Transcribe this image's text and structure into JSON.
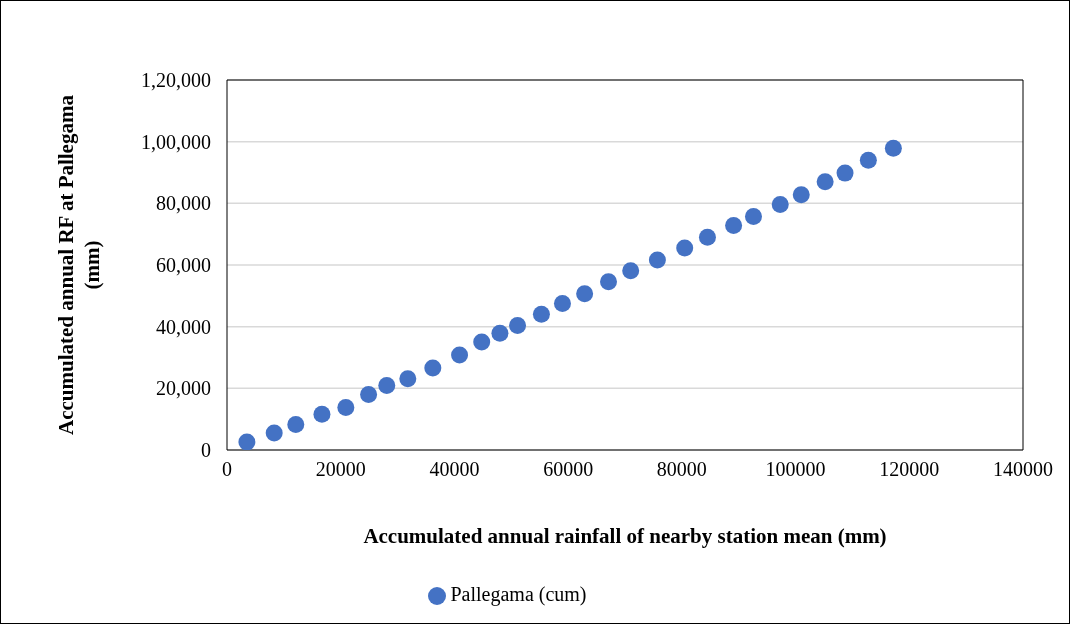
{
  "chart_data": {
    "type": "scatter",
    "xlabel": "Accumulated annual rainfall of nearby station mean (mm)",
    "ylabel": "Accumulated annual RF at Pallegama (mm)",
    "x": [
      3500,
      8300,
      12100,
      16700,
      20900,
      24900,
      28100,
      31800,
      36200,
      40900,
      44800,
      48000,
      51100,
      55300,
      59000,
      62900,
      67100,
      71000,
      75700,
      80500,
      84500,
      89100,
      92600,
      97300,
      101000,
      105200,
      108700,
      112800,
      117200
    ],
    "series": [
      {
        "name": "Pallegama (cum)",
        "color": "#4472c4",
        "values": [
          2600,
          5500,
          8300,
          11600,
          13800,
          18000,
          20900,
          23100,
          26600,
          30800,
          35000,
          37900,
          40400,
          44000,
          47500,
          50700,
          54600,
          58100,
          61600,
          65500,
          69000,
          72800,
          75700,
          79600,
          82800,
          87000,
          89800,
          94000,
          97900
        ]
      }
    ],
    "xlim": [
      0,
      140000
    ],
    "xticks": [
      0,
      20000,
      40000,
      60000,
      80000,
      100000,
      120000,
      140000
    ],
    "ylim": [
      0,
      120000
    ],
    "yticks": [
      0,
      {
        "value": 20000,
        "label": "20,000"
      },
      {
        "value": 40000,
        "label": "40,000"
      },
      {
        "value": 60000,
        "label": "60,000"
      },
      {
        "value": 80000,
        "label": "80,000"
      },
      {
        "value": 100000,
        "label": "1,00,000"
      },
      {
        "value": 120000,
        "label": "1,20,000"
      }
    ],
    "grid": "y",
    "legend": "bottom",
    "marker": "circle"
  }
}
